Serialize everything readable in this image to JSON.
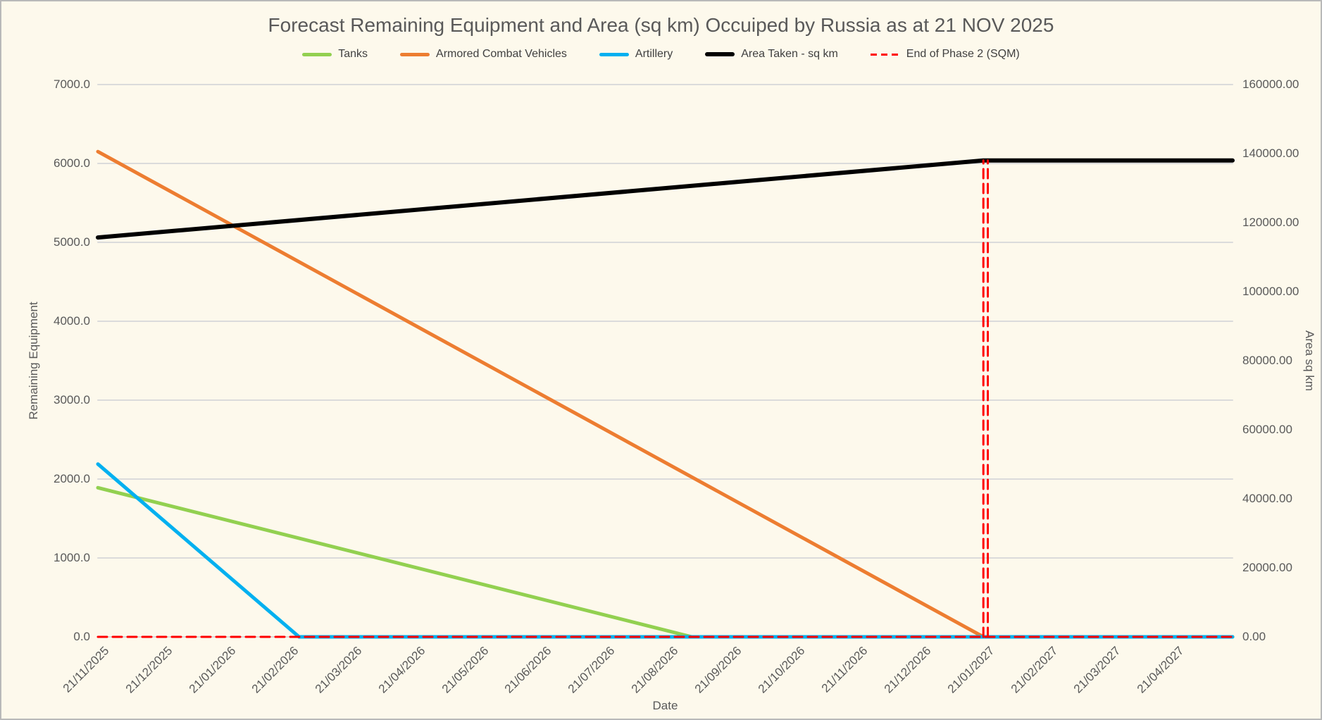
{
  "colors": {
    "background": "#FDF9EC",
    "frame_border": "#B9B9B9",
    "gridline": "#DBDBDB",
    "title_text": "#595959",
    "axis_text": "#595959",
    "tanks": "#92D050",
    "armored_combat_vehicles": "#ED7D31",
    "artillery": "#00B0F0",
    "area_taken": "#000000",
    "end_of_phase_2": "#FF0000"
  },
  "chart_data": {
    "type": "line",
    "title": "Forecast Remaining Equipment and Area (sq km) Occuiped by Russia as at 21 NOV 2025",
    "legend_position": "top",
    "grid": "horizontal",
    "x_axis": {
      "label": "Date",
      "tick_labels": [
        "21/11/2025",
        "21/12/2025",
        "21/01/2026",
        "21/02/2026",
        "21/03/2026",
        "21/04/2026",
        "21/05/2026",
        "21/06/2026",
        "21/07/2026",
        "21/08/2026",
        "21/09/2026",
        "21/10/2026",
        "21/11/2026",
        "21/12/2026",
        "21/01/2027",
        "21/02/2027",
        "21/03/2027",
        "21/04/2027"
      ]
    },
    "y_left": {
      "label": "Remaining Equipment",
      "range": [
        0,
        7000
      ],
      "tick_labels": [
        "7000.0",
        "6000.0",
        "5000.0",
        "4000.0",
        "3000.0",
        "2000.0",
        "1000.0",
        "0.0"
      ]
    },
    "y_right": {
      "label": "Area sq km",
      "range": [
        0,
        160000
      ],
      "tick_labels": [
        "160000.00",
        "140000.00",
        "120000.00",
        "100000.00",
        "80000.00",
        "60000.00",
        "40000.00",
        "20000.00",
        "0.00"
      ]
    },
    "series": [
      {
        "name": "Tanks",
        "color": "#92D050",
        "axis": "left",
        "width": 5,
        "dash": null,
        "monthly_values": [
          1890,
          1689,
          1487,
          1286,
          1085,
          884,
          682,
          481,
          280,
          78,
          0,
          0,
          0,
          0,
          0,
          0,
          0,
          0
        ],
        "zero_reached": "early Sep 2026",
        "segments": [
          [
            [
              0,
              1890
            ],
            [
              9.39,
              0
            ],
            [
              17.94,
              0
            ]
          ]
        ]
      },
      {
        "name": "Armored Combat Vehicles",
        "color": "#ED7D31",
        "axis": "left",
        "width": 5,
        "dash": null,
        "monthly_values": [
          6150,
          5711,
          5271,
          4832,
          4393,
          3954,
          3514,
          3075,
          2636,
          2196,
          1757,
          1318,
          879,
          439,
          0,
          0,
          0,
          0
        ],
        "zero_reached": "21/01/2027",
        "segments": [
          [
            [
              0,
              6150
            ],
            [
              14,
              0
            ],
            [
              17.94,
              0
            ]
          ]
        ]
      },
      {
        "name": "Artillery",
        "color": "#00B0F0",
        "axis": "left",
        "width": 5,
        "dash": null,
        "monthly_values": [
          2190,
          1501,
          813,
          124,
          0,
          0,
          0,
          0,
          0,
          0,
          0,
          0,
          0,
          0,
          0,
          0,
          0,
          0
        ],
        "zero_reached": "late Feb 2026",
        "segments": [
          [
            [
              0,
              2190
            ],
            [
              3.18,
              0
            ],
            [
              17.94,
              0
            ]
          ]
        ]
      },
      {
        "name": "Area Taken - sq km",
        "color": "#000000",
        "axis": "right",
        "width": 6,
        "dash": null,
        "monthly_values": [
          115700,
          117293,
          118886,
          120479,
          122071,
          123664,
          125257,
          126850,
          128443,
          130036,
          131629,
          133221,
          134814,
          136407,
          138000,
          138000,
          138000,
          138000
        ],
        "segments": [
          [
            [
              0,
              115700
            ],
            [
              14,
              138000
            ],
            [
              17.94,
              138000
            ]
          ]
        ]
      },
      {
        "name": "End of Phase 2 (SQM)",
        "color": "#FF0000",
        "axis": "right",
        "width": 3,
        "dash": "13 8",
        "monthly_values": [
          0,
          0,
          0,
          0,
          0,
          0,
          0,
          0,
          0,
          0,
          0,
          0,
          0,
          0,
          138000,
          0,
          0,
          0
        ],
        "spike_date": "21/01/2027",
        "segments": [
          [
            [
              0,
              0
            ],
            [
              17.94,
              0
            ]
          ],
          [
            [
              14,
              0
            ],
            [
              14,
              138000
            ]
          ],
          [
            [
              14.07,
              0
            ],
            [
              14.07,
              138000
            ]
          ]
        ]
      }
    ]
  }
}
